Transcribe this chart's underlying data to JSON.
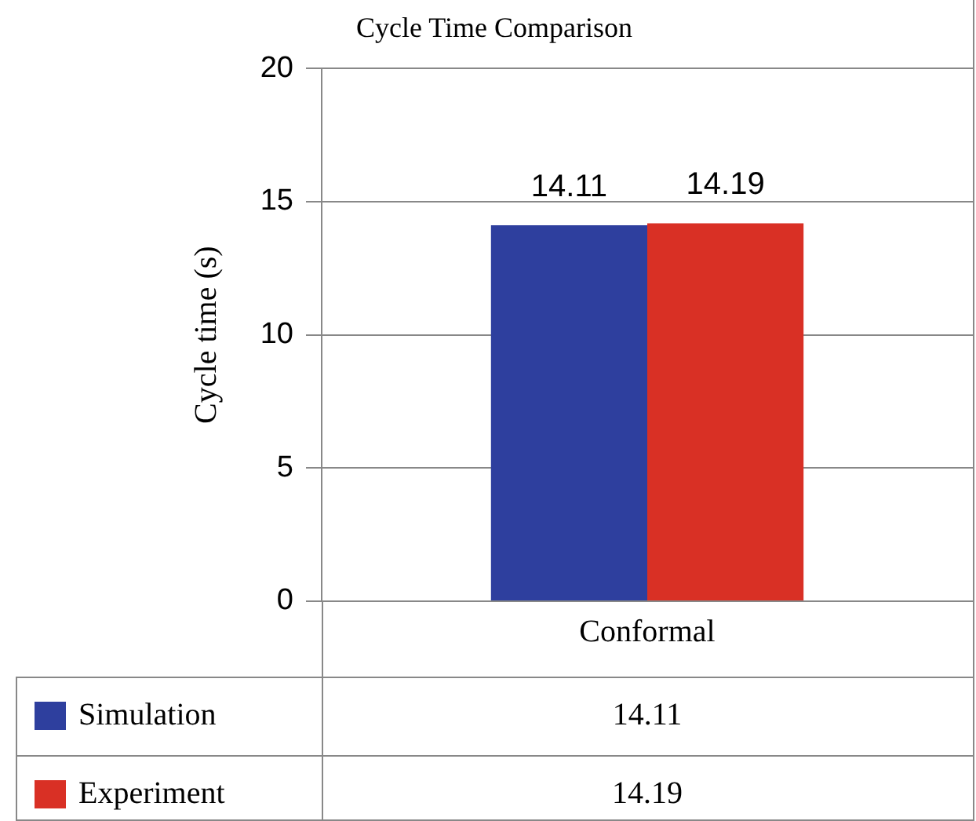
{
  "chart_data": {
    "type": "bar",
    "title": "Cycle Time Comparison",
    "ylabel": "Cycle time (s)",
    "categories": [
      "Conformal"
    ],
    "series": [
      {
        "name": "Simulation",
        "color": "#2e3f9e",
        "values": [
          14.11
        ]
      },
      {
        "name": "Experiment",
        "color": "#d93025",
        "values": [
          14.19
        ]
      }
    ],
    "ylim": [
      0,
      20
    ],
    "yticks": [
      0,
      5,
      10,
      15,
      20
    ],
    "grid": "y",
    "data_labels": true,
    "legend": "bottom",
    "annotations": [
      "14.11",
      "14.19"
    ]
  }
}
